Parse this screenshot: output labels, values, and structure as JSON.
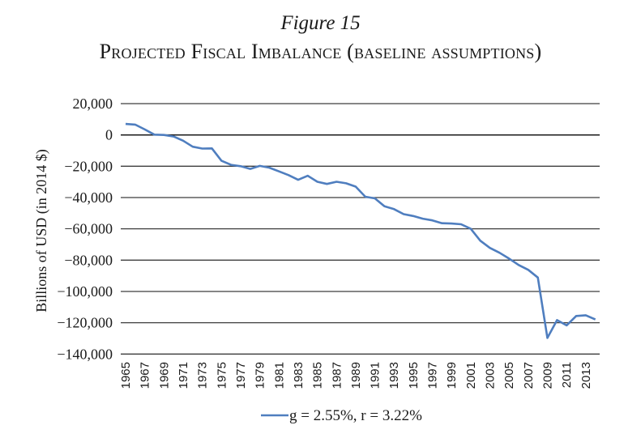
{
  "figure_label": "Figure 15",
  "title": "Projected Fiscal Imbalance (baseline assumptions)",
  "chart_data": {
    "type": "line",
    "title": "Projected Fiscal Imbalance (baseline assumptions)",
    "xlabel": "",
    "ylabel": "Billions of USD (in 2014 $)",
    "ylim": [
      -140000,
      20000
    ],
    "yticks": [
      20000,
      0,
      -20000,
      -40000,
      -60000,
      -80000,
      -100000,
      -120000,
      -140000
    ],
    "ytick_labels": [
      "20,000",
      "0",
      "−20,000",
      "−40,000",
      "−60,000",
      "−80,000",
      "−100,000",
      "−120,000",
      "−140,000"
    ],
    "xlim": [
      1965,
      2014
    ],
    "xtick_labels": [
      "1965",
      "1967",
      "1969",
      "1971",
      "1973",
      "1975",
      "1977",
      "1979",
      "1981",
      "1983",
      "1985",
      "1987",
      "1989",
      "1991",
      "1993",
      "1995",
      "1997",
      "1999",
      "2001",
      "2003",
      "2005",
      "2007",
      "2009",
      "2011",
      "2013"
    ],
    "grid": true,
    "legend_position": "bottom",
    "x": [
      1965,
      1966,
      1967,
      1968,
      1969,
      1970,
      1971,
      1972,
      1973,
      1974,
      1975,
      1976,
      1977,
      1978,
      1979,
      1980,
      1981,
      1982,
      1983,
      1984,
      1985,
      1986,
      1987,
      1988,
      1989,
      1990,
      1991,
      1992,
      1993,
      1994,
      1995,
      1996,
      1997,
      1998,
      1999,
      2000,
      2001,
      2002,
      2003,
      2004,
      2005,
      2006,
      2007,
      2008,
      2009,
      2010,
      2011,
      2012,
      2013,
      2014
    ],
    "series": [
      {
        "name": "g = 2.55%, r = 3.22%",
        "color": "#4f7ebf",
        "values": [
          7000,
          6600,
          3500,
          200,
          0,
          -1000,
          -3700,
          -7500,
          -8700,
          -8600,
          -16500,
          -19100,
          -20000,
          -21700,
          -19800,
          -20900,
          -23300,
          -25700,
          -28700,
          -26100,
          -29900,
          -31300,
          -29900,
          -30900,
          -33000,
          -39500,
          -40500,
          -45600,
          -47400,
          -50600,
          -51800,
          -53500,
          -54600,
          -56400,
          -56600,
          -57100,
          -60000,
          -67600,
          -72200,
          -75300,
          -79000,
          -83100,
          -86200,
          -91100,
          -129700,
          -118300,
          -121700,
          -115700,
          -115200,
          -117900
        ]
      }
    ]
  },
  "legend": {
    "label": "g = 2.55%, r = 3.22%"
  }
}
